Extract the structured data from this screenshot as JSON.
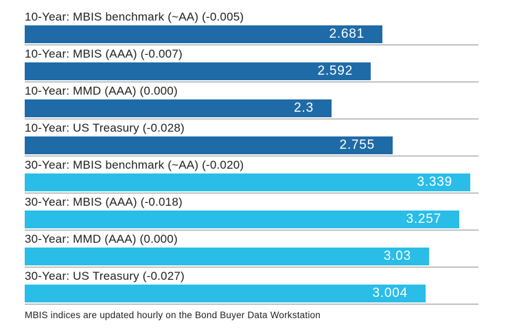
{
  "chart_data": {
    "type": "bar",
    "orientation": "horizontal",
    "title": "",
    "categories": [
      "10-Year: MBIS benchmark (~AA) (-0.005)",
      "10-Year: MBIS (AAA) (-0.007)",
      "10-Year: MMD (AAA) (0.000)",
      "10-Year: US Treasury (-0.028)",
      "30-Year: MBIS benchmark (~AA) (-0.020)",
      "30-Year: MBIS (AAA) (-0.018)",
      "30-Year: MMD (AAA) (0.000)",
      "30-Year: US Treasury (-0.027)"
    ],
    "values": [
      2.681,
      2.592,
      2.3,
      2.755,
      3.339,
      3.257,
      3.03,
      3.004
    ],
    "value_labels": [
      "2.681",
      "2.592",
      "2.3",
      "2.755",
      "3.339",
      "3.257",
      "3.03",
      "3.004"
    ],
    "bar_colors": [
      "#1f6ba8",
      "#1f6ba8",
      "#1f6ba8",
      "#1f6ba8",
      "#29bde8",
      "#29bde8",
      "#29bde8",
      "#29bde8"
    ],
    "series": [
      {
        "name": "10-Year",
        "color": "#1f6ba8",
        "values": [
          2.681,
          2.592,
          2.3,
          2.755
        ]
      },
      {
        "name": "30-Year",
        "color": "#29bde8",
        "values": [
          3.339,
          3.257,
          3.03,
          3.004
        ]
      }
    ],
    "xlim": [
      0,
      3.4
    ],
    "grid": false,
    "legend_position": "none",
    "note": "MBIS indices are updated hourly on the Bond Buyer Data Workstation"
  },
  "colors": {
    "ten_year_bar": "#1f6ba8",
    "thirty_year_bar": "#29bde8",
    "separator_line": "#8c8c8c",
    "label_text": "#222222",
    "value_text": "#ffffff",
    "background": "#ffffff"
  },
  "footer": {
    "note": "MBIS indices are updated hourly on the Bond Buyer Data Workstation"
  }
}
